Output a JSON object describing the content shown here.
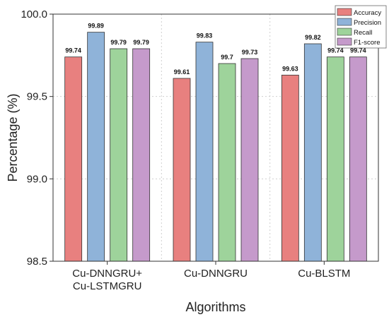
{
  "chart_data": {
    "type": "bar",
    "categories": [
      "Cu-DNNGRU+\nCu-LSTMGRU",
      "Cu-DNNGRU",
      "Cu-BLSTM"
    ],
    "series": [
      {
        "name": "Accuracy",
        "values": [
          99.74,
          99.61,
          99.63
        ],
        "color": "#e8807f",
        "labels": [
          "99.74",
          "99.61",
          "99.63"
        ]
      },
      {
        "name": "Precision",
        "values": [
          99.89,
          99.83,
          99.82
        ],
        "color": "#8fb3d9",
        "labels": [
          "99.89",
          "99.83",
          "99.82"
        ]
      },
      {
        "name": "Recall",
        "values": [
          99.79,
          99.7,
          99.74
        ],
        "color": "#9ed39b",
        "labels": [
          "99.79",
          "99.7",
          "99.74"
        ]
      },
      {
        "name": "F1-score",
        "values": [
          99.79,
          99.73,
          99.74
        ],
        "color": "#c59acb",
        "labels": [
          "99.79",
          "99.73",
          "99.74"
        ]
      }
    ],
    "xlabel": "Algorithms",
    "ylabel": "Percentage (%)",
    "ylim": [
      98.5,
      100.0
    ],
    "yticks": [
      "98.5",
      "99.0",
      "99.5",
      "100.0"
    ],
    "grid": true,
    "legend_position": "top-right"
  }
}
